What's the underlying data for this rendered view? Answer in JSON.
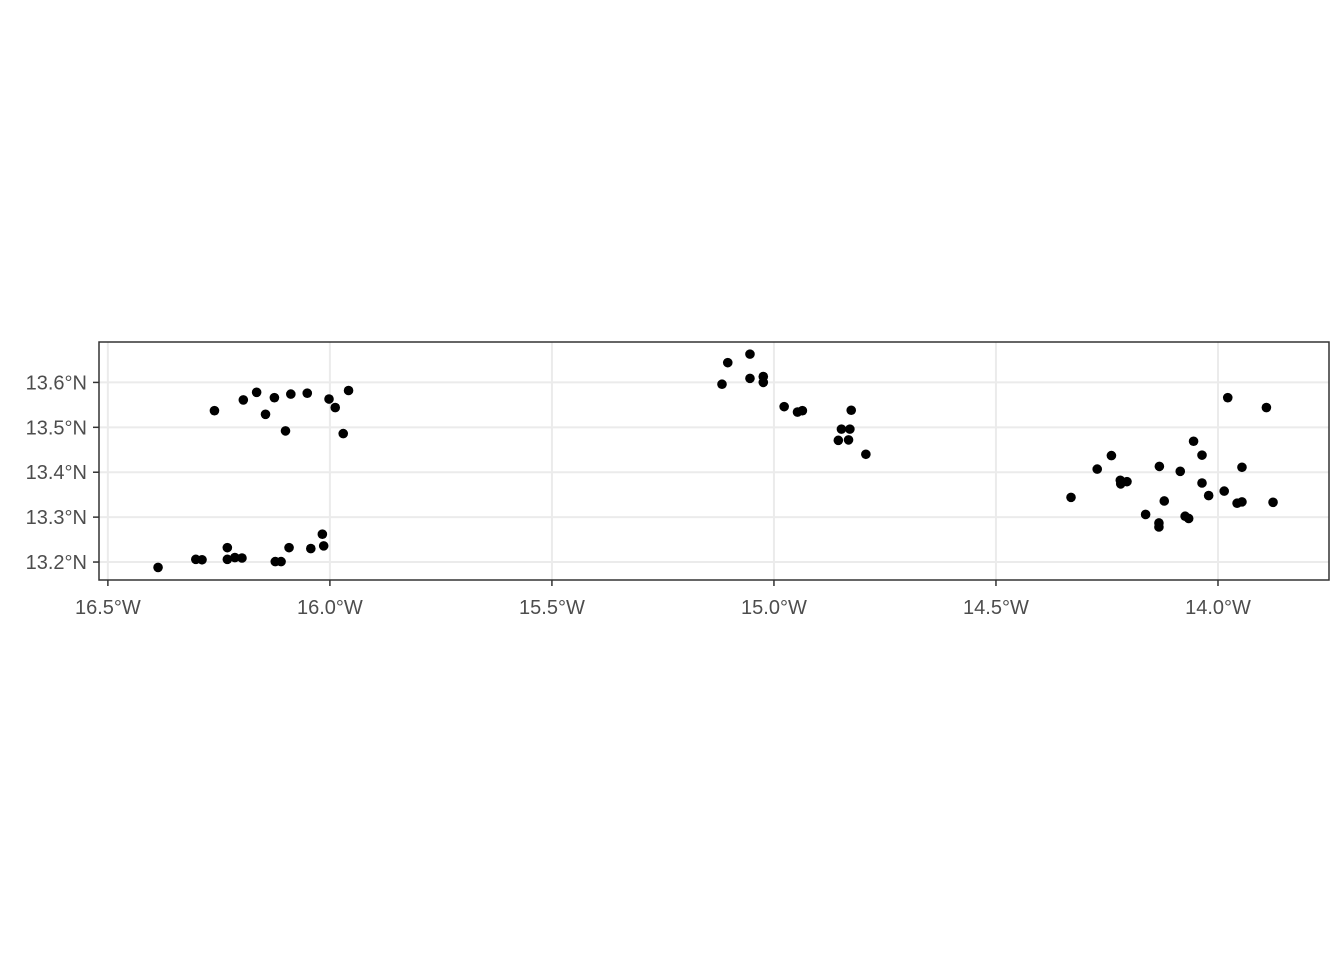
{
  "chart_data": {
    "type": "scatter",
    "title": "",
    "xlabel": "",
    "ylabel": "",
    "xlim": [
      -16.52,
      -13.75
    ],
    "ylim": [
      13.16,
      13.69
    ],
    "grid": true,
    "point_color": "#000000",
    "x_ticks": [
      {
        "value": -16.5,
        "label": "16.5°W"
      },
      {
        "value": -16.0,
        "label": "16.0°W"
      },
      {
        "value": -15.5,
        "label": "15.5°W"
      },
      {
        "value": -15.0,
        "label": "15.0°W"
      },
      {
        "value": -14.5,
        "label": "14.5°W"
      },
      {
        "value": -14.0,
        "label": "14.0°W"
      }
    ],
    "y_ticks": [
      {
        "value": 13.2,
        "label": "13.2°N"
      },
      {
        "value": 13.3,
        "label": "13.3°N"
      },
      {
        "value": 13.4,
        "label": "13.4°N"
      },
      {
        "value": 13.5,
        "label": "13.5°N"
      },
      {
        "value": 13.6,
        "label": "13.6°N"
      }
    ],
    "points": [
      {
        "x": -16.26,
        "y": 13.537
      },
      {
        "x": -16.195,
        "y": 13.561
      },
      {
        "x": -16.165,
        "y": 13.578
      },
      {
        "x": -16.145,
        "y": 13.529
      },
      {
        "x": -16.125,
        "y": 13.566
      },
      {
        "x": -16.1,
        "y": 13.492
      },
      {
        "x": -16.088,
        "y": 13.574
      },
      {
        "x": -16.051,
        "y": 13.576
      },
      {
        "x": -16.002,
        "y": 13.563
      },
      {
        "x": -15.988,
        "y": 13.544
      },
      {
        "x": -15.97,
        "y": 13.486
      },
      {
        "x": -15.958,
        "y": 13.582
      },
      {
        "x": -16.387,
        "y": 13.188
      },
      {
        "x": -16.302,
        "y": 13.206
      },
      {
        "x": -16.288,
        "y": 13.205
      },
      {
        "x": -16.231,
        "y": 13.232
      },
      {
        "x": -16.231,
        "y": 13.206
      },
      {
        "x": -16.214,
        "y": 13.21
      },
      {
        "x": -16.198,
        "y": 13.209
      },
      {
        "x": -16.123,
        "y": 13.201
      },
      {
        "x": -16.11,
        "y": 13.201
      },
      {
        "x": -16.092,
        "y": 13.232
      },
      {
        "x": -16.043,
        "y": 13.23
      },
      {
        "x": -16.017,
        "y": 13.262
      },
      {
        "x": -16.014,
        "y": 13.236
      },
      {
        "x": -15.117,
        "y": 13.596
      },
      {
        "x": -15.104,
        "y": 13.644
      },
      {
        "x": -15.054,
        "y": 13.663
      },
      {
        "x": -15.054,
        "y": 13.609
      },
      {
        "x": -15.024,
        "y": 13.613
      },
      {
        "x": -15.024,
        "y": 13.6
      },
      {
        "x": -14.977,
        "y": 13.546
      },
      {
        "x": -14.947,
        "y": 13.534
      },
      {
        "x": -14.936,
        "y": 13.537
      },
      {
        "x": -14.826,
        "y": 13.538
      },
      {
        "x": -14.848,
        "y": 13.496
      },
      {
        "x": -14.829,
        "y": 13.496
      },
      {
        "x": -14.855,
        "y": 13.471
      },
      {
        "x": -14.832,
        "y": 13.472
      },
      {
        "x": -14.793,
        "y": 13.44
      },
      {
        "x": -14.331,
        "y": 13.344
      },
      {
        "x": -14.272,
        "y": 13.407
      },
      {
        "x": -14.24,
        "y": 13.437
      },
      {
        "x": -14.22,
        "y": 13.382
      },
      {
        "x": -14.219,
        "y": 13.374
      },
      {
        "x": -14.205,
        "y": 13.379
      },
      {
        "x": -14.163,
        "y": 13.306
      },
      {
        "x": -14.133,
        "y": 13.287
      },
      {
        "x": -14.133,
        "y": 13.278
      },
      {
        "x": -14.132,
        "y": 13.413
      },
      {
        "x": -14.121,
        "y": 13.336
      },
      {
        "x": -14.085,
        "y": 13.402
      },
      {
        "x": -14.074,
        "y": 13.302
      },
      {
        "x": -14.066,
        "y": 13.297
      },
      {
        "x": -14.055,
        "y": 13.469
      },
      {
        "x": -14.036,
        "y": 13.438
      },
      {
        "x": -14.036,
        "y": 13.376
      },
      {
        "x": -14.021,
        "y": 13.348
      },
      {
        "x": -13.986,
        "y": 13.358
      },
      {
        "x": -13.978,
        "y": 13.566
      },
      {
        "x": -13.957,
        "y": 13.331
      },
      {
        "x": -13.946,
        "y": 13.334
      },
      {
        "x": -13.946,
        "y": 13.411
      },
      {
        "x": -13.891,
        "y": 13.544
      },
      {
        "x": -13.876,
        "y": 13.333
      }
    ]
  }
}
